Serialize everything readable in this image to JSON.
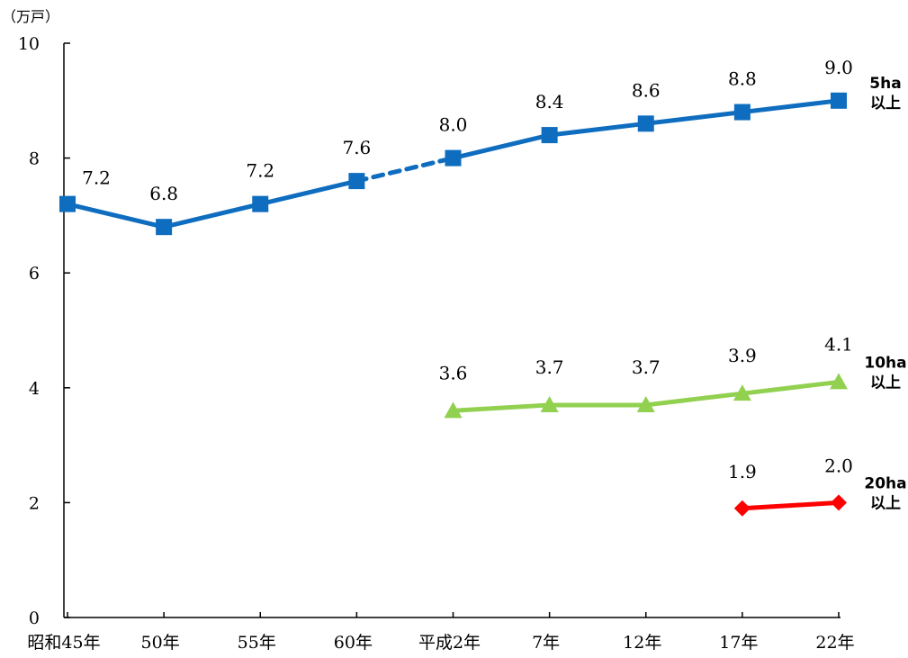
{
  "chart_data": {
    "type": "line",
    "unit_label": "（万戸）",
    "categories": [
      "昭和45年",
      "50年",
      "55年",
      "60年",
      "平成2年",
      "7年",
      "12年",
      "17年",
      "22年"
    ],
    "ylim": [
      0,
      10
    ],
    "yticks": [
      "0",
      "2",
      "4",
      "6",
      "8",
      "10"
    ],
    "grid": false,
    "series": [
      {
        "name": [
          "5ha",
          "以上"
        ],
        "color": "#0f6dbf",
        "marker": "square",
        "values": [
          7.2,
          6.8,
          7.2,
          7.6,
          8.0,
          8.4,
          8.6,
          8.8,
          9.0
        ],
        "labels": [
          "7.2",
          "6.8",
          "7.2",
          "7.6",
          "8.0",
          "8.4",
          "8.6",
          "8.8",
          "9.0"
        ],
        "dashed_segments": [
          [
            3,
            4
          ]
        ]
      },
      {
        "name": [
          "10ha",
          "以上"
        ],
        "color": "#92d050",
        "marker": "triangle",
        "values": [
          null,
          null,
          null,
          null,
          3.6,
          3.7,
          3.7,
          3.9,
          4.1
        ],
        "labels": [
          null,
          null,
          null,
          null,
          "3.6",
          "3.7",
          "3.7",
          "3.9",
          "4.1"
        ],
        "dashed_segments": []
      },
      {
        "name": [
          "20ha",
          "以上"
        ],
        "color": "#ff0000",
        "marker": "diamond",
        "values": [
          null,
          null,
          null,
          null,
          null,
          null,
          null,
          1.9,
          2.0
        ],
        "labels": [
          null,
          null,
          null,
          null,
          null,
          null,
          null,
          "1.9",
          "2.0"
        ],
        "dashed_segments": []
      }
    ]
  }
}
